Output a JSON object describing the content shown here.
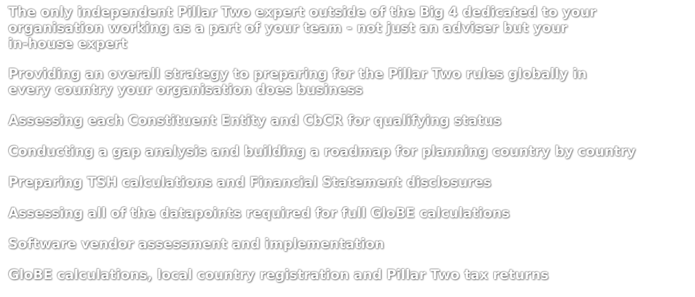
{
  "items": [
    "The only independent Pillar Two expert outside of the Big 4 dedicated to your\norganisation working as a part of your team - not just an adviser but your\nin-house expert",
    "Providing an overall strategy to preparing for the Pillar Two rules globally in\nevery country your organisation does business",
    "Assessing each Constituent Entity and CbCR for qualifying status",
    "Conducting a gap analysis and building a roadmap for planning country by country",
    "Preparing TSH calculations and Financial Statement disclosures",
    "Assessing all of the datapoints required for full GloBE calculations",
    "Software vendor assessment and implementation",
    "GloBE calculations, local country registration and Pillar Two tax returns"
  ]
}
